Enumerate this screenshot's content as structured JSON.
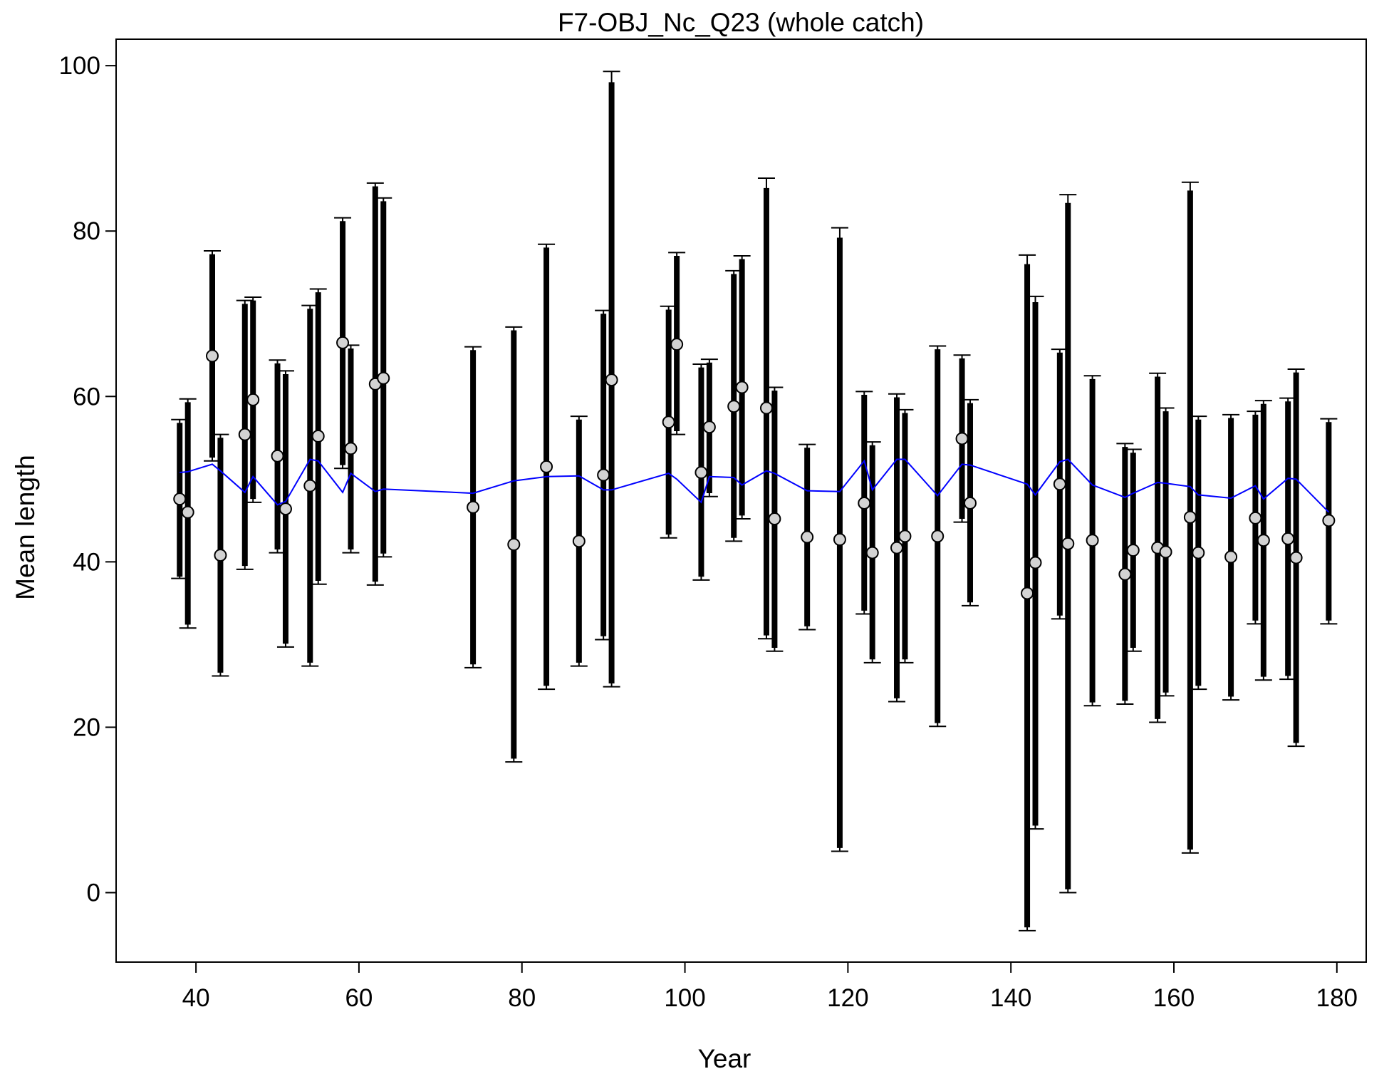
{
  "chart_data": {
    "type": "scatter",
    "title": "F7-OBJ_Nc_Q23 (whole catch)",
    "xlabel": "Year",
    "ylabel": "Mean length",
    "xlim": [
      30.2,
      183.6
    ],
    "ylim": [
      -8.4,
      103.2
    ],
    "xticks": [
      40,
      60,
      80,
      100,
      120,
      140,
      160,
      180
    ],
    "yticks": [
      0,
      20,
      40,
      60,
      80,
      100
    ],
    "grid": false,
    "legend": "none",
    "colors": {
      "observed_fill": "#d3d3d3",
      "expected_line": "#0000ff",
      "error_bar": "#000000"
    },
    "observed": [
      {
        "x": 38,
        "y": 47.6,
        "lo_outer": 38.0,
        "hi_outer": 57.2,
        "lo_inner": 38.2,
        "hi_inner": 56.8
      },
      {
        "x": 39,
        "y": 46.0,
        "lo_outer": 32.0,
        "hi_outer": 59.7,
        "lo_inner": 32.4,
        "hi_inner": 59.3
      },
      {
        "x": 42,
        "y": 64.9,
        "lo_outer": 52.2,
        "hi_outer": 77.6,
        "lo_inner": 52.6,
        "hi_inner": 77.2
      },
      {
        "x": 43,
        "y": 40.8,
        "lo_outer": 26.2,
        "hi_outer": 55.4,
        "lo_inner": 26.6,
        "hi_inner": 55.0
      },
      {
        "x": 46,
        "y": 55.4,
        "lo_outer": 39.1,
        "hi_outer": 71.6,
        "lo_inner": 39.5,
        "hi_inner": 71.2
      },
      {
        "x": 47,
        "y": 59.6,
        "lo_outer": 47.2,
        "hi_outer": 72.0,
        "lo_inner": 47.6,
        "hi_inner": 71.6
      },
      {
        "x": 50,
        "y": 52.8,
        "lo_outer": 41.1,
        "hi_outer": 64.4,
        "lo_inner": 41.5,
        "hi_inner": 64.0
      },
      {
        "x": 51,
        "y": 46.4,
        "lo_outer": 29.7,
        "hi_outer": 63.1,
        "lo_inner": 30.1,
        "hi_inner": 62.7
      },
      {
        "x": 54,
        "y": 49.2,
        "lo_outer": 27.4,
        "hi_outer": 71.0,
        "lo_inner": 27.8,
        "hi_inner": 70.6
      },
      {
        "x": 55,
        "y": 55.2,
        "lo_outer": 37.3,
        "hi_outer": 73.0,
        "lo_inner": 37.7,
        "hi_inner": 72.6
      },
      {
        "x": 58,
        "y": 66.5,
        "lo_outer": 51.3,
        "hi_outer": 81.6,
        "lo_inner": 51.7,
        "hi_inner": 81.2
      },
      {
        "x": 59,
        "y": 53.7,
        "lo_outer": 41.1,
        "hi_outer": 66.2,
        "lo_inner": 41.5,
        "hi_inner": 65.8
      },
      {
        "x": 62,
        "y": 61.5,
        "lo_outer": 37.2,
        "hi_outer": 85.8,
        "lo_inner": 37.6,
        "hi_inner": 85.4
      },
      {
        "x": 63,
        "y": 62.2,
        "lo_outer": 40.6,
        "hi_outer": 84.0,
        "lo_inner": 41.0,
        "hi_inner": 83.6
      },
      {
        "x": 74,
        "y": 46.6,
        "lo_outer": 27.2,
        "hi_outer": 66.0,
        "lo_inner": 27.6,
        "hi_inner": 65.6
      },
      {
        "x": 79,
        "y": 42.1,
        "lo_outer": 15.8,
        "hi_outer": 68.4,
        "lo_inner": 16.2,
        "hi_inner": 68.0
      },
      {
        "x": 83,
        "y": 51.5,
        "lo_outer": 24.6,
        "hi_outer": 78.4,
        "lo_inner": 25.0,
        "hi_inner": 78.0
      },
      {
        "x": 87,
        "y": 42.5,
        "lo_outer": 27.4,
        "hi_outer": 57.6,
        "lo_inner": 27.8,
        "hi_inner": 57.2
      },
      {
        "x": 90,
        "y": 50.5,
        "lo_outer": 30.6,
        "hi_outer": 70.4,
        "lo_inner": 31.0,
        "hi_inner": 70.0
      },
      {
        "x": 91,
        "y": 62.0,
        "lo_outer": 24.9,
        "hi_outer": 99.3,
        "lo_inner": 25.3,
        "hi_inner": 98.0
      },
      {
        "x": 98,
        "y": 56.9,
        "lo_outer": 42.9,
        "hi_outer": 70.9,
        "lo_inner": 43.3,
        "hi_inner": 70.5
      },
      {
        "x": 99,
        "y": 66.3,
        "lo_outer": 55.4,
        "hi_outer": 77.4,
        "lo_inner": 55.8,
        "hi_inner": 77.0
      },
      {
        "x": 102,
        "y": 50.8,
        "lo_outer": 37.8,
        "hi_outer": 63.9,
        "lo_inner": 38.2,
        "hi_inner": 63.5
      },
      {
        "x": 103,
        "y": 56.3,
        "lo_outer": 47.9,
        "hi_outer": 64.5,
        "lo_inner": 48.3,
        "hi_inner": 64.1
      },
      {
        "x": 106,
        "y": 58.8,
        "lo_outer": 42.5,
        "hi_outer": 75.2,
        "lo_inner": 42.9,
        "hi_inner": 74.8
      },
      {
        "x": 107,
        "y": 61.1,
        "lo_outer": 45.2,
        "hi_outer": 77.0,
        "lo_inner": 45.6,
        "hi_inner": 76.6
      },
      {
        "x": 110,
        "y": 58.6,
        "lo_outer": 30.7,
        "hi_outer": 86.4,
        "lo_inner": 31.1,
        "hi_inner": 85.2
      },
      {
        "x": 111,
        "y": 45.2,
        "lo_outer": 29.2,
        "hi_outer": 61.1,
        "lo_inner": 29.6,
        "hi_inner": 60.7
      },
      {
        "x": 115,
        "y": 43.0,
        "lo_outer": 31.8,
        "hi_outer": 54.2,
        "lo_inner": 32.2,
        "hi_inner": 53.8
      },
      {
        "x": 119,
        "y": 42.7,
        "lo_outer": 5.0,
        "hi_outer": 80.4,
        "lo_inner": 5.4,
        "hi_inner": 79.2
      },
      {
        "x": 122,
        "y": 47.1,
        "lo_outer": 33.7,
        "hi_outer": 60.6,
        "lo_inner": 34.1,
        "hi_inner": 60.2
      },
      {
        "x": 123,
        "y": 41.1,
        "lo_outer": 27.8,
        "hi_outer": 54.5,
        "lo_inner": 28.2,
        "hi_inner": 54.1
      },
      {
        "x": 126,
        "y": 41.7,
        "lo_outer": 23.1,
        "hi_outer": 60.3,
        "lo_inner": 23.5,
        "hi_inner": 59.9
      },
      {
        "x": 127,
        "y": 43.1,
        "lo_outer": 27.8,
        "hi_outer": 58.4,
        "lo_inner": 28.2,
        "hi_inner": 58.0
      },
      {
        "x": 131,
        "y": 43.1,
        "lo_outer": 20.1,
        "hi_outer": 66.1,
        "lo_inner": 20.5,
        "hi_inner": 65.7
      },
      {
        "x": 134,
        "y": 54.9,
        "lo_outer": 44.8,
        "hi_outer": 65.0,
        "lo_inner": 45.2,
        "hi_inner": 64.6
      },
      {
        "x": 135,
        "y": 47.1,
        "lo_outer": 34.7,
        "hi_outer": 59.6,
        "lo_inner": 35.1,
        "hi_inner": 59.2
      },
      {
        "x": 142,
        "y": 36.2,
        "lo_outer": -4.6,
        "hi_outer": 77.1,
        "lo_inner": -4.2,
        "hi_inner": 76.0
      },
      {
        "x": 143,
        "y": 39.9,
        "lo_outer": 7.7,
        "hi_outer": 72.1,
        "lo_inner": 8.1,
        "hi_inner": 71.4
      },
      {
        "x": 146,
        "y": 49.4,
        "lo_outer": 33.1,
        "hi_outer": 65.7,
        "lo_inner": 33.5,
        "hi_inner": 65.3
      },
      {
        "x": 147,
        "y": 42.2,
        "lo_outer": 0.0,
        "hi_outer": 84.4,
        "lo_inner": 0.4,
        "hi_inner": 83.4
      },
      {
        "x": 150,
        "y": 42.6,
        "lo_outer": 22.6,
        "hi_outer": 62.5,
        "lo_inner": 23.0,
        "hi_inner": 62.1
      },
      {
        "x": 154,
        "y": 38.5,
        "lo_outer": 22.8,
        "hi_outer": 54.3,
        "lo_inner": 23.2,
        "hi_inner": 53.9
      },
      {
        "x": 155,
        "y": 41.4,
        "lo_outer": 29.2,
        "hi_outer": 53.6,
        "lo_inner": 29.6,
        "hi_inner": 53.2
      },
      {
        "x": 158,
        "y": 41.7,
        "lo_outer": 20.6,
        "hi_outer": 62.8,
        "lo_inner": 21.0,
        "hi_inner": 62.4
      },
      {
        "x": 159,
        "y": 41.2,
        "lo_outer": 23.8,
        "hi_outer": 58.6,
        "lo_inner": 24.2,
        "hi_inner": 58.2
      },
      {
        "x": 162,
        "y": 45.4,
        "lo_outer": 4.8,
        "hi_outer": 85.9,
        "lo_inner": 5.2,
        "hi_inner": 84.9
      },
      {
        "x": 163,
        "y": 41.1,
        "lo_outer": 24.6,
        "hi_outer": 57.6,
        "lo_inner": 25.0,
        "hi_inner": 57.2
      },
      {
        "x": 167,
        "y": 40.6,
        "lo_outer": 23.3,
        "hi_outer": 57.8,
        "lo_inner": 23.7,
        "hi_inner": 57.4
      },
      {
        "x": 170,
        "y": 45.3,
        "lo_outer": 32.5,
        "hi_outer": 58.2,
        "lo_inner": 32.9,
        "hi_inner": 57.8
      },
      {
        "x": 171,
        "y": 42.6,
        "lo_outer": 25.7,
        "hi_outer": 59.5,
        "lo_inner": 26.1,
        "hi_inner": 59.1
      },
      {
        "x": 174,
        "y": 42.8,
        "lo_outer": 25.8,
        "hi_outer": 59.8,
        "lo_inner": 26.2,
        "hi_inner": 59.4
      },
      {
        "x": 175,
        "y": 40.5,
        "lo_outer": 17.7,
        "hi_outer": 63.3,
        "lo_inner": 18.1,
        "hi_inner": 62.9
      },
      {
        "x": 179,
        "y": 45.0,
        "lo_outer": 32.5,
        "hi_outer": 57.3,
        "lo_inner": 32.9,
        "hi_inner": 56.9
      }
    ],
    "expected": {
      "x": [
        38,
        39,
        42,
        43,
        46,
        47,
        50,
        51,
        54,
        55,
        58,
        59,
        62,
        63,
        74,
        79,
        83,
        87,
        90,
        91,
        98,
        99,
        102,
        103,
        106,
        107,
        110,
        111,
        115,
        119,
        122,
        123,
        126,
        127,
        131,
        134,
        135,
        142,
        143,
        146,
        147,
        150,
        154,
        155,
        158,
        159,
        162,
        163,
        167,
        170,
        171,
        174,
        175,
        179
      ],
      "y": [
        50.8,
        50.9,
        51.8,
        51.0,
        48.4,
        50.3,
        46.9,
        47.3,
        52.4,
        52.2,
        48.4,
        50.7,
        48.5,
        48.8,
        48.3,
        49.8,
        50.3,
        50.4,
        48.7,
        48.7,
        50.7,
        50.0,
        47.2,
        50.3,
        50.2,
        49.3,
        51.0,
        50.7,
        48.6,
        48.5,
        52.2,
        48.7,
        52.4,
        52.4,
        48.0,
        51.8,
        51.7,
        49.4,
        48.1,
        52.1,
        52.4,
        49.3,
        47.8,
        48.3,
        49.6,
        49.5,
        49.1,
        48.1,
        47.7,
        49.2,
        47.6,
        50.1,
        50.0,
        46.0
      ]
    }
  }
}
